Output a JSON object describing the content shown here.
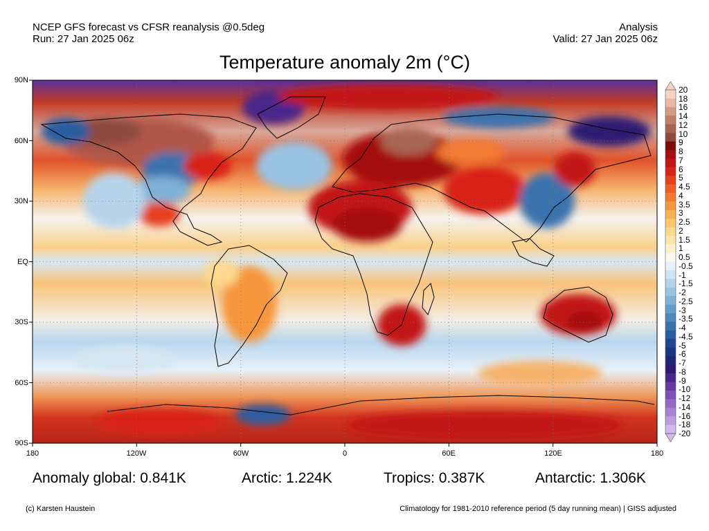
{
  "header": {
    "left_line1": "NCEP GFS forecast vs CFSR reanalysis @0.5deg",
    "left_line2": "Run: 27 Jan 2025 06z",
    "right_line1": "Analysis",
    "right_line2": "Valid: 27 Jan 2025 06z"
  },
  "title": "Temperature anomaly 2m (°C)",
  "map": {
    "projection": "equirectangular",
    "lat_labels": [
      "90N",
      "60N",
      "30N",
      "EQ",
      "30S",
      "60S",
      "90S"
    ],
    "lon_labels": [
      "180",
      "120W",
      "60W",
      "0",
      "60E",
      "120E",
      "180"
    ],
    "gridlines": "dotted"
  },
  "colorbar": {
    "levels": [
      "20",
      "18",
      "16",
      "14",
      "12",
      "10",
      "9",
      "8",
      "7",
      "6",
      "5",
      "4.5",
      "4",
      "3.5",
      "3",
      "2.5",
      "2",
      "1.5",
      "1",
      "0.5",
      "-0.5",
      "-1",
      "-1.5",
      "-2",
      "-2.5",
      "-3",
      "-3.5",
      "-4",
      "-4.5",
      "-5",
      "-6",
      "-7",
      "-8",
      "-9",
      "-10",
      "-12",
      "-14",
      "-16",
      "-18",
      "-20"
    ],
    "colors": [
      "#f6d2c2",
      "#e7b8a4",
      "#d49c84",
      "#bf8068",
      "#a86552",
      "#8f4a3c",
      "#7e0a0a",
      "#a40f0f",
      "#c31515",
      "#d92318",
      "#e6401e",
      "#ee5e26",
      "#f37a30",
      "#f6963e",
      "#f9b054",
      "#fbc76e",
      "#fcd98c",
      "#fde6ac",
      "#fef1cc",
      "#fbf9ef",
      "#e6f1fa",
      "#cfe4f4",
      "#b5d4ec",
      "#9ac3e2",
      "#7fb1d7",
      "#669dcb",
      "#4f88bd",
      "#3b72ae",
      "#2a5d9f",
      "#1d4891",
      "#1a3582",
      "#1f2474",
      "#2e1a72",
      "#4a258a",
      "#653aa2",
      "#7d52b7",
      "#9469c8",
      "#a982d6",
      "#bd9ce2",
      "#d2b8ec"
    ]
  },
  "stats": {
    "global": "Anomaly global: 0.841K",
    "arctic": "Arctic: 1.224K",
    "tropics": "Tropics: 0.387K",
    "antarctic": "Antarctic: 1.306K"
  },
  "footer": {
    "credit": "(c) Karsten Haustein",
    "note": "Climatology for 1981-2010 reference period (5 day running mean) | GISS adjusted"
  }
}
